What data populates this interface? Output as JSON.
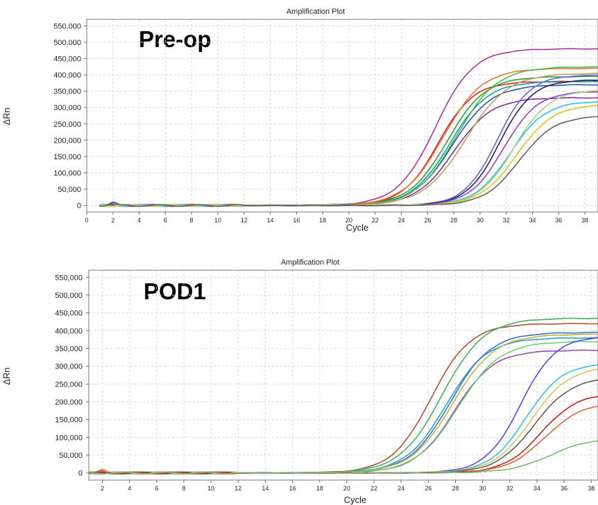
{
  "chart_data": [
    {
      "type": "line",
      "title": "Amplification Plot",
      "overlay_label": "Pre-op",
      "xlabel": "Cycle",
      "ylabel": "ΔRn",
      "xlim": [
        0,
        39
      ],
      "ylim": [
        -20000,
        570000
      ],
      "yticks": [
        0,
        50000,
        100000,
        150000,
        200000,
        250000,
        300000,
        350000,
        400000,
        450000,
        500000,
        550000
      ],
      "ytick_labels": [
        "0",
        "50,000",
        "100,000",
        "150,000",
        "200,000",
        "250,000",
        "300,000",
        "350,000",
        "400,000",
        "450,000",
        "500,000",
        "550,000"
      ],
      "xticks": [
        0,
        2,
        4,
        6,
        8,
        10,
        12,
        14,
        16,
        18,
        20,
        22,
        24,
        26,
        28,
        30,
        32,
        34,
        36,
        38
      ],
      "grid": true,
      "series_params": [
        {
          "color": "#b0309a",
          "ct": 26.6,
          "plateau": 480000,
          "slope": 1.45
        },
        {
          "color": "#e02020",
          "ct": 26.8,
          "plateau": 380000,
          "slope": 1.35
        },
        {
          "color": "#f07030",
          "ct": 27.2,
          "plateau": 420000,
          "slope": 1.5
        },
        {
          "color": "#2a9d3a",
          "ct": 27.5,
          "plateau": 395000,
          "slope": 1.45
        },
        {
          "color": "#10a0a0",
          "ct": 27.7,
          "plateau": 380000,
          "slope": 1.45
        },
        {
          "color": "#3050c0",
          "ct": 27.9,
          "plateau": 370000,
          "slope": 1.5
        },
        {
          "color": "#7a30a0",
          "ct": 28.0,
          "plateau": 330000,
          "slope": 1.45
        },
        {
          "color": "#40c040",
          "ct": 28.2,
          "plateau": 425000,
          "slope": 1.55
        },
        {
          "color": "#c0a050",
          "ct": 28.9,
          "plateau": 405000,
          "slope": 1.6
        },
        {
          "color": "#6060e0",
          "ct": 31.3,
          "plateau": 400000,
          "slope": 1.25
        },
        {
          "color": "#202060",
          "ct": 31.5,
          "plateau": 385000,
          "slope": 1.25
        },
        {
          "color": "#9040c0",
          "ct": 31.8,
          "plateau": 350000,
          "slope": 1.3
        },
        {
          "color": "#30c0e0",
          "ct": 32.3,
          "plateau": 320000,
          "slope": 1.35
        },
        {
          "color": "#a0d080",
          "ct": 32.6,
          "plateau": 355000,
          "slope": 1.35
        },
        {
          "color": "#e0c020",
          "ct": 32.8,
          "plateau": 310000,
          "slope": 1.4
        },
        {
          "color": "#606060",
          "ct": 33.0,
          "plateau": 275000,
          "slope": 1.35
        }
      ]
    },
    {
      "type": "line",
      "title": "Amplification Plot",
      "overlay_label": "POD1",
      "xlabel": "Cycle",
      "ylabel": "ΔRn",
      "xlim": [
        1,
        38.5
      ],
      "ylim": [
        -20000,
        570000
      ],
      "yticks": [
        0,
        50000,
        100000,
        150000,
        200000,
        250000,
        300000,
        350000,
        400000,
        450000,
        500000,
        550000
      ],
      "ytick_labels": [
        "0",
        "50,000",
        "100,000",
        "150,000",
        "200,000",
        "250,000",
        "300,000",
        "350,000",
        "400,000",
        "450,000",
        "500,000",
        "550,000"
      ],
      "xticks": [
        2,
        4,
        6,
        8,
        10,
        12,
        14,
        16,
        18,
        20,
        22,
        24,
        26,
        28,
        30,
        32,
        34,
        36,
        38
      ],
      "grid": true,
      "series_params": [
        {
          "color": "#b05030",
          "ct": 26.2,
          "plateau": 420000,
          "slope": 1.45
        },
        {
          "color": "#40b060",
          "ct": 27.0,
          "plateau": 435000,
          "slope": 1.55
        },
        {
          "color": "#2aa0c0",
          "ct": 27.3,
          "plateau": 380000,
          "slope": 1.5
        },
        {
          "color": "#3a70d0",
          "ct": 27.6,
          "plateau": 395000,
          "slope": 1.5
        },
        {
          "color": "#c0b040",
          "ct": 27.8,
          "plateau": 390000,
          "slope": 1.55
        },
        {
          "color": "#9050b0",
          "ct": 27.9,
          "plateau": 345000,
          "slope": 1.45
        },
        {
          "color": "#70d070",
          "ct": 28.2,
          "plateau": 370000,
          "slope": 1.55
        },
        {
          "color": "#6040e0",
          "ct": 32.8,
          "plateau": 385000,
          "slope": 1.3
        },
        {
          "color": "#30c0e0",
          "ct": 33.2,
          "plateau": 310000,
          "slope": 1.35
        },
        {
          "color": "#e0c060",
          "ct": 33.6,
          "plateau": 300000,
          "slope": 1.4
        },
        {
          "color": "#606060",
          "ct": 33.8,
          "plateau": 270000,
          "slope": 1.4
        },
        {
          "color": "#c02020",
          "ct": 34.3,
          "plateau": 225000,
          "slope": 1.35
        },
        {
          "color": "#e06040",
          "ct": 34.6,
          "plateau": 200000,
          "slope": 1.4
        },
        {
          "color": "#70c070",
          "ct": 35.0,
          "plateau": 100000,
          "slope": 1.5
        }
      ]
    }
  ]
}
